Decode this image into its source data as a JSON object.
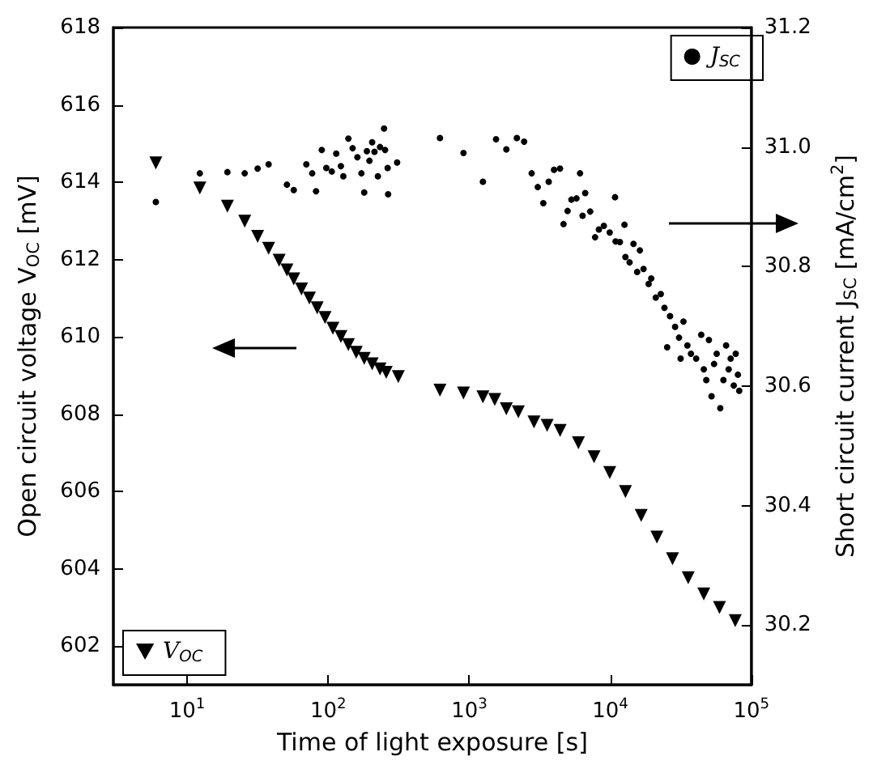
{
  "chart_data": {
    "type": "scatter",
    "xlabel": "Time of light exposure [s]",
    "ylabel": "Open circuit voltage V$_{OC}$ [mV]",
    "y2label": "Short circuit current J$_{SC}$ [mA/cm$^{2}$]",
    "log": "x",
    "grid": false,
    "legend": [
      "bottom left",
      "top right"
    ],
    "xlim": [
      3,
      100000
    ],
    "xticks": [
      {
        "value": 10,
        "label": "10$^{1}$"
      },
      {
        "value": 100,
        "label": "10$^{2}$"
      },
      {
        "value": 1000,
        "label": "10$^{3}$"
      },
      {
        "value": 10000,
        "label": "10$^{4}$"
      },
      {
        "value": 100000,
        "label": "10$^{5}$"
      }
    ],
    "ylim": [
      601,
      618
    ],
    "yticks": [
      602,
      604,
      606,
      608,
      610,
      612,
      614,
      616,
      618
    ],
    "y2lim": [
      30.1,
      31.2
    ],
    "y2ticks": [
      {
        "value": 30.2,
        "label": "30.2"
      },
      {
        "value": 30.4,
        "label": "30.4"
      },
      {
        "value": 30.6,
        "label": "30.6"
      },
      {
        "value": 30.8,
        "label": "30.8"
      },
      {
        "value": 31,
        "label": "31.0"
      },
      {
        "value": 31.2,
        "label": "31.2"
      }
    ],
    "series": [
      {
        "name": "V$_{OC}$",
        "color": "#000000",
        "marker": "triangle",
        "x": [
          6.0,
          12.3,
          19.3,
          25.6,
          31.6,
          37.8,
          44.9,
          51,
          57,
          64.7,
          73.6,
          83.6,
          95,
          108,
          123,
          139,
          158,
          180,
          205,
          233,
          258,
          314,
          620,
          910,
          1250,
          1517,
          1832,
          2228,
          2877,
          3565,
          4406,
          5940,
          7670,
          9910,
          12800,
          16550,
          21400,
          27600,
          35650,
          46000,
          59400,
          76900
        ],
        "values": [
          614.5,
          613.85,
          613.38,
          612.99,
          612.6,
          612.29,
          611.98,
          611.73,
          611.5,
          611.24,
          611.0,
          610.75,
          610.5,
          610.22,
          610.01,
          609.8,
          609.6,
          609.44,
          609.3,
          609.17,
          609.08,
          608.97,
          608.62,
          608.55,
          608.45,
          608.38,
          608.14,
          608.06,
          607.8,
          607.71,
          607.58,
          607.26,
          606.9,
          606.49,
          606.0,
          605.38,
          604.82,
          604.26,
          603.77,
          603.35,
          603.0,
          602.66
        ]
      },
      {
        "name": "J$_{SC}$",
        "color": "#000000",
        "marker": "circle",
        "axis": "y2",
        "x": [
          6.0,
          12.3,
          19.3,
          25.6,
          31.6,
          37.8,
          51,
          57,
          70,
          77,
          82,
          90,
          97,
          106,
          114,
          123,
          128,
          139,
          149,
          161,
          172,
          180,
          188,
          196,
          205,
          213,
          225,
          233,
          249,
          253,
          264,
          266,
          308,
          620,
          910,
          1250,
          1548,
          1832,
          2175,
          2449,
          2770,
          3060,
          3350,
          3660,
          3990,
          4400,
          4660,
          4980,
          5300,
          5760,
          6100,
          6360,
          6640,
          7200,
          7800,
          8300,
          9000,
          9900,
          10800,
          10900,
          11700,
          12600,
          12800,
          13700,
          14600,
          15500,
          16200,
          17200,
          18700,
          19500,
          21000,
          22800,
          24200,
          25300,
          26500,
          28800,
          30700,
          31500,
          33000,
          35200,
          37300,
          40600,
          44100,
          46000,
          47900,
          50000,
          52200,
          54400,
          56800,
          60200,
          63400,
          66200,
          69000,
          71300,
          75000,
          77500,
          80300,
          82000
        ],
        "values": [
          30.908,
          30.956,
          30.958,
          30.956,
          30.964,
          30.971,
          30.937,
          30.928,
          30.971,
          30.956,
          30.926,
          30.995,
          30.965,
          30.959,
          30.989,
          30.968,
          30.951,
          31.014,
          30.998,
          30.983,
          30.956,
          30.924,
          30.993,
          30.977,
          31.008,
          30.992,
          30.951,
          31.0,
          31.031,
          30.995,
          30.965,
          30.921,
          30.974,
          31.015,
          30.99,
          30.942,
          31.013,
          30.996,
          31.015,
          31.009,
          30.956,
          30.933,
          30.906,
          30.942,
          30.962,
          30.964,
          30.871,
          30.893,
          30.912,
          30.914,
          30.956,
          30.885,
          30.923,
          30.892,
          30.849,
          30.862,
          30.868,
          30.857,
          30.916,
          30.842,
          30.841,
          30.87,
          30.816,
          30.807,
          30.838,
          30.791,
          30.827,
          30.796,
          30.771,
          30.78,
          30.748,
          30.754,
          30.731,
          30.665,
          30.717,
          30.699,
          30.681,
          30.646,
          30.708,
          30.668,
          30.654,
          30.646,
          30.686,
          30.628,
          30.61,
          30.677,
          30.583,
          30.637,
          30.654,
          30.563,
          30.61,
          30.668,
          30.628,
          30.646,
          30.601,
          30.654,
          30.619,
          30.592
        ]
      }
    ]
  }
}
